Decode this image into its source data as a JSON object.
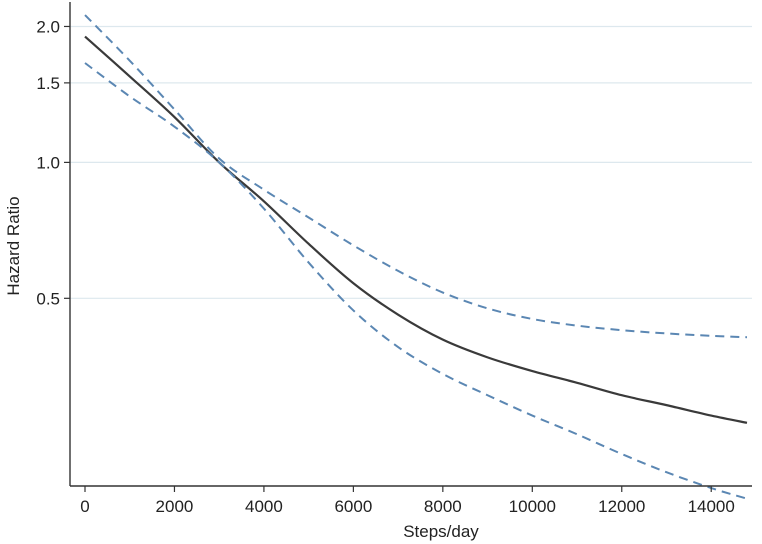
{
  "chart_data": {
    "type": "line",
    "xlabel": "Steps/day",
    "ylabel": "Hazard Ratio",
    "y_scale": "log",
    "xlim": [
      0,
      14800
    ],
    "ylim": [
      0.192,
      2.22
    ],
    "x_ticks": [
      0,
      2000,
      4000,
      6000,
      8000,
      10000,
      12000,
      14000
    ],
    "x_tick_labels": [
      "0",
      "2000",
      "4000",
      "6000",
      "8000",
      "10000",
      "12000",
      "14000"
    ],
    "y_ticks": [
      0.5,
      1.0,
      1.5,
      2.0
    ],
    "y_tick_labels": [
      "0.5",
      "1.0",
      "1.5",
      "2.0"
    ],
    "grid": "horizontal",
    "colors": {
      "estimate": "#3a3a3a",
      "ci": "#5b87b3",
      "grid": "#dde8ee",
      "axis": "#333333"
    },
    "series": [
      {
        "style": "solid",
        "x": [
          0,
          1000,
          2000,
          3000,
          4000,
          5000,
          6000,
          7000,
          8000,
          9000,
          10000,
          11000,
          12000,
          13000,
          14000,
          14800
        ],
        "y": [
          1.9,
          1.55,
          1.26,
          1.0,
          0.82,
          0.66,
          0.54,
          0.46,
          0.405,
          0.37,
          0.345,
          0.325,
          0.305,
          0.29,
          0.275,
          0.265
        ]
      },
      {
        "style": "dashed",
        "x": [
          0,
          1000,
          2000,
          3000,
          4000,
          5000,
          6000,
          7000,
          8000,
          9000,
          10000,
          11000,
          12000,
          13000,
          14000,
          14800
        ],
        "y": [
          2.12,
          1.68,
          1.31,
          1.02,
          0.87,
          0.755,
          0.655,
          0.575,
          0.515,
          0.475,
          0.45,
          0.435,
          0.425,
          0.418,
          0.413,
          0.41
        ]
      },
      {
        "style": "dashed",
        "x": [
          0,
          1000,
          2000,
          3000,
          4000,
          5000,
          6000,
          7000,
          8000,
          9000,
          10000,
          11000,
          12000,
          13000,
          14000,
          14800
        ],
        "y": [
          1.66,
          1.4,
          1.2,
          1.0,
          0.79,
          0.6,
          0.47,
          0.39,
          0.34,
          0.305,
          0.275,
          0.25,
          0.226,
          0.206,
          0.19,
          0.18
        ]
      }
    ]
  }
}
